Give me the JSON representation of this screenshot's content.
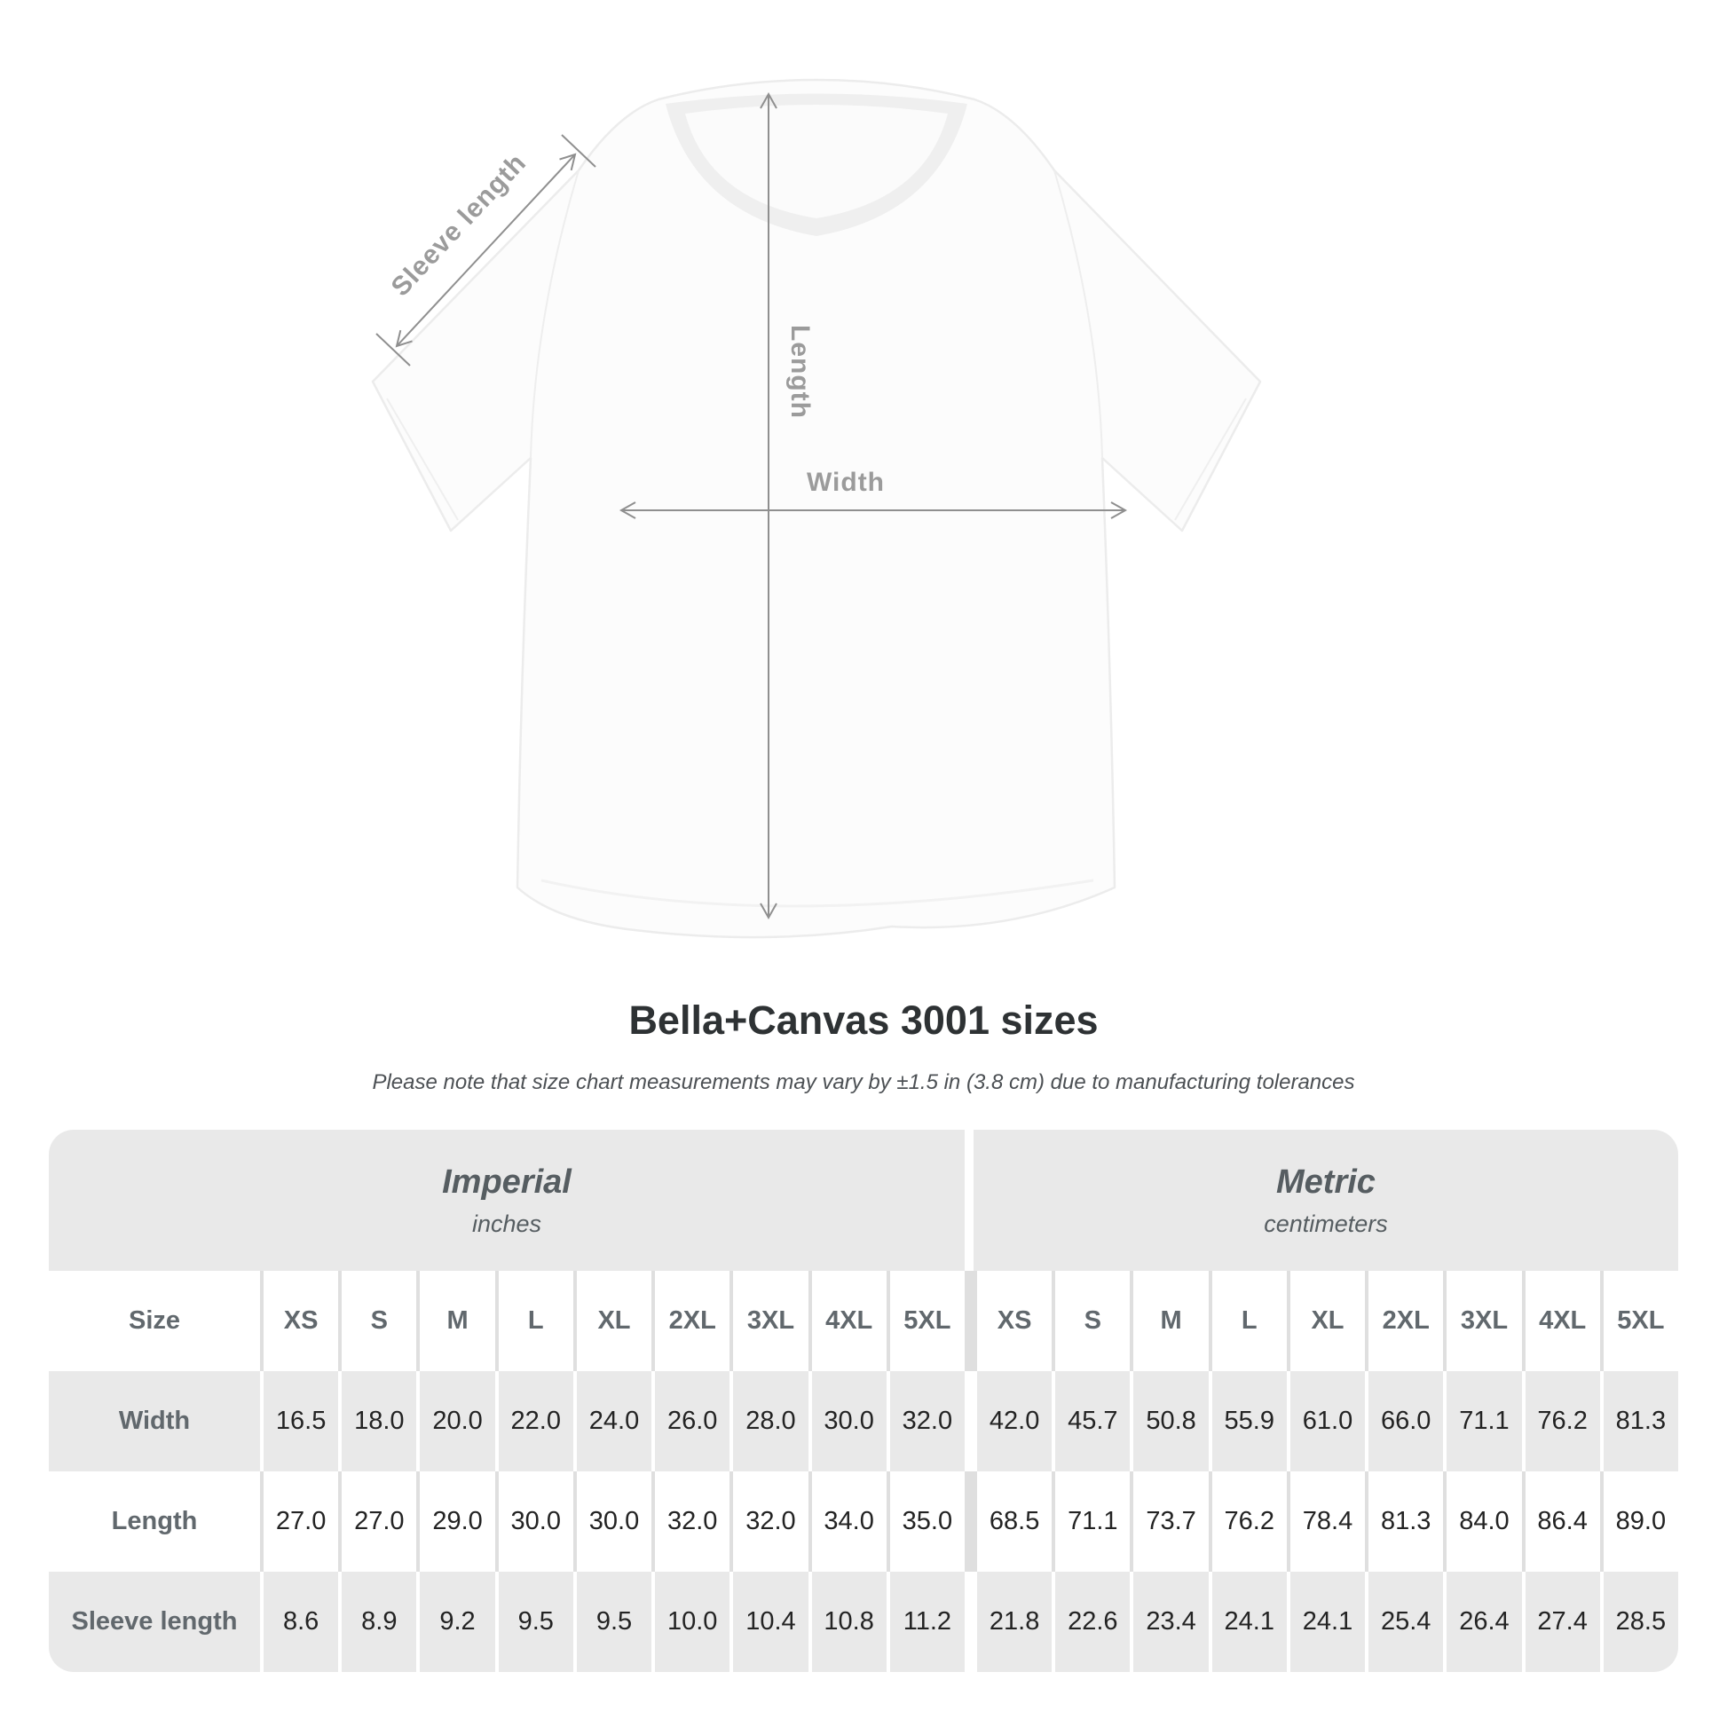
{
  "diagram": {
    "labels": {
      "sleeve_length": "Sleeve length",
      "length": "Length",
      "width": "Width"
    }
  },
  "header": {
    "title": "Bella+Canvas 3001 sizes",
    "subtitle": "Please note that size chart measurements may vary by ±1.5 in (3.8 cm) due to manufacturing tolerances"
  },
  "table": {
    "sections": [
      {
        "label": "Imperial",
        "unit": "inches"
      },
      {
        "label": "Metric",
        "unit": "centimeters"
      }
    ],
    "size_column_header": "Size",
    "sizes": [
      "XS",
      "S",
      "M",
      "L",
      "XL",
      "2XL",
      "3XL",
      "4XL",
      "5XL"
    ],
    "rows": [
      {
        "label": "Width",
        "imperial": [
          "16.5",
          "18.0",
          "20.0",
          "22.0",
          "24.0",
          "26.0",
          "28.0",
          "30.0",
          "32.0"
        ],
        "metric": [
          "42.0",
          "45.7",
          "50.8",
          "55.9",
          "61.0",
          "66.0",
          "71.1",
          "76.2",
          "81.3"
        ]
      },
      {
        "label": "Length",
        "imperial": [
          "27.0",
          "27.0",
          "29.0",
          "30.0",
          "30.0",
          "32.0",
          "32.0",
          "34.0",
          "35.0"
        ],
        "metric": [
          "68.5",
          "71.1",
          "73.7",
          "76.2",
          "78.4",
          "81.3",
          "84.0",
          "86.4",
          "89.0"
        ]
      },
      {
        "label": "Sleeve length",
        "imperial": [
          "8.6",
          "8.9",
          "9.2",
          "9.5",
          "9.5",
          "10.0",
          "10.4",
          "10.8",
          "11.2"
        ],
        "metric": [
          "21.8",
          "22.6",
          "23.4",
          "24.1",
          "24.1",
          "25.4",
          "26.4",
          "27.4",
          "28.5"
        ]
      }
    ]
  },
  "colors": {
    "table_fill": "#e9e9e9",
    "separator": "#dfdfdf",
    "heading_text": "#61686d",
    "value_text": "#232323",
    "title_text": "#2e3234",
    "diagram_label": "#9b9b9b",
    "arrow": "#8f8f8f"
  },
  "chart_data": {
    "type": "table",
    "title": "Bella+Canvas 3001 sizes",
    "note": "Please note that size chart measurements may vary by ±1.5 in (3.8 cm) due to manufacturing tolerances",
    "sizes": [
      "XS",
      "S",
      "M",
      "L",
      "XL",
      "2XL",
      "3XL",
      "4XL",
      "5XL"
    ],
    "imperial_inches": {
      "Width": [
        16.5,
        18.0,
        20.0,
        22.0,
        24.0,
        26.0,
        28.0,
        30.0,
        32.0
      ],
      "Length": [
        27.0,
        27.0,
        29.0,
        30.0,
        30.0,
        32.0,
        32.0,
        34.0,
        35.0
      ],
      "Sleeve length": [
        8.6,
        8.9,
        9.2,
        9.5,
        9.5,
        10.0,
        10.4,
        10.8,
        11.2
      ]
    },
    "metric_centimeters": {
      "Width": [
        42.0,
        45.7,
        50.8,
        55.9,
        61.0,
        66.0,
        71.1,
        76.2,
        81.3
      ],
      "Length": [
        68.5,
        71.1,
        73.7,
        76.2,
        78.4,
        81.3,
        84.0,
        86.4,
        89.0
      ],
      "Sleeve length": [
        21.8,
        22.6,
        23.4,
        24.1,
        24.1,
        25.4,
        26.4,
        27.4,
        28.5
      ]
    }
  }
}
